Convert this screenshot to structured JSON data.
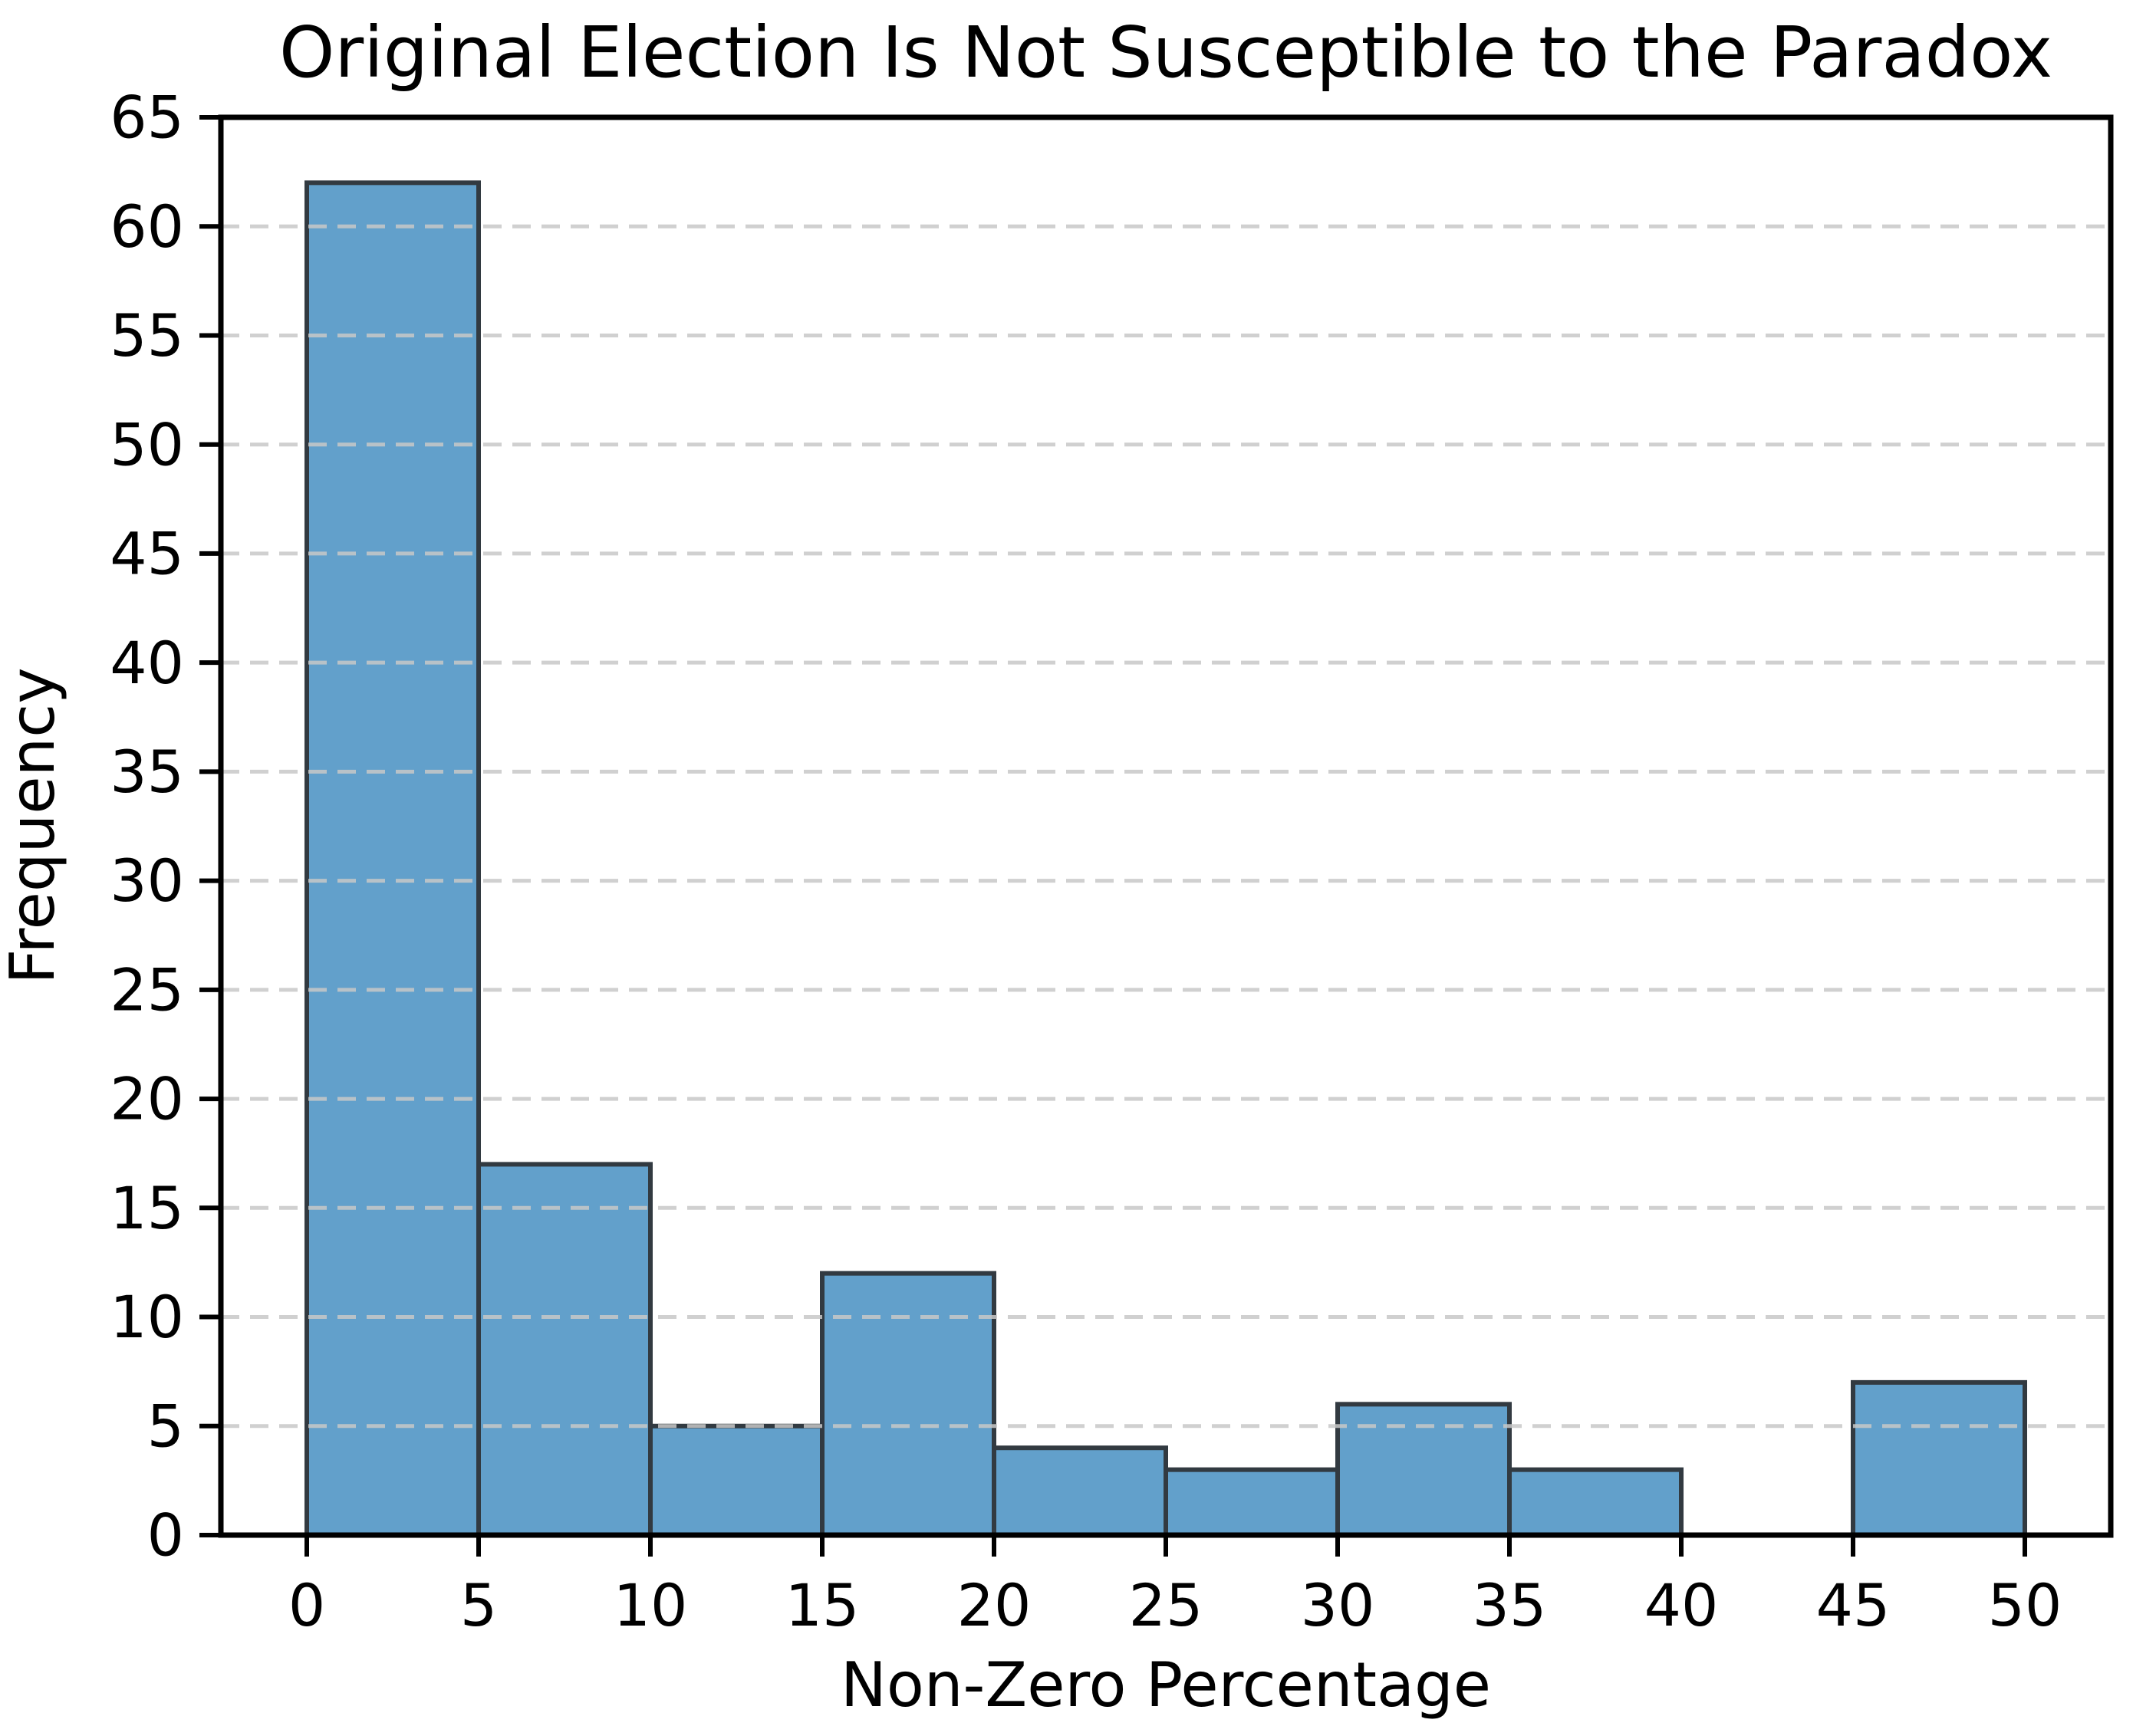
{
  "figure": {
    "title": "Original Election Is Not Susceptible to the Paradox"
  },
  "chart_data": {
    "type": "bar",
    "subtype": "histogram",
    "title": "Original Election Is Not Susceptible to the Paradox",
    "xlabel": "Non-Zero Percentage",
    "ylabel": "Frequency",
    "bin_edges": [
      0,
      5,
      10,
      15,
      20,
      25,
      30,
      35,
      40,
      45,
      50
    ],
    "categories": [
      "0-5",
      "5-10",
      "10-15",
      "15-20",
      "20-25",
      "25-30",
      "30-35",
      "35-40",
      "40-45",
      "45-50"
    ],
    "values": [
      62,
      17,
      5,
      12,
      4,
      3,
      6,
      3,
      0,
      7
    ],
    "xticks": [
      0,
      5,
      10,
      15,
      20,
      25,
      30,
      35,
      40,
      45,
      50
    ],
    "yticks": [
      0,
      5,
      10,
      15,
      20,
      25,
      30,
      35,
      40,
      45,
      50,
      55,
      60,
      65
    ],
    "xlim": [
      -2.5,
      52.5
    ],
    "ylim": [
      0,
      65
    ],
    "grid": "horizontal-dashed",
    "legend_position": "none",
    "colors": {
      "bar_fill": "#62a0cb",
      "bar_edge": "#323a41",
      "grid": "#c8c8c8",
      "axis": "#000000",
      "background": "#ffffff"
    }
  }
}
